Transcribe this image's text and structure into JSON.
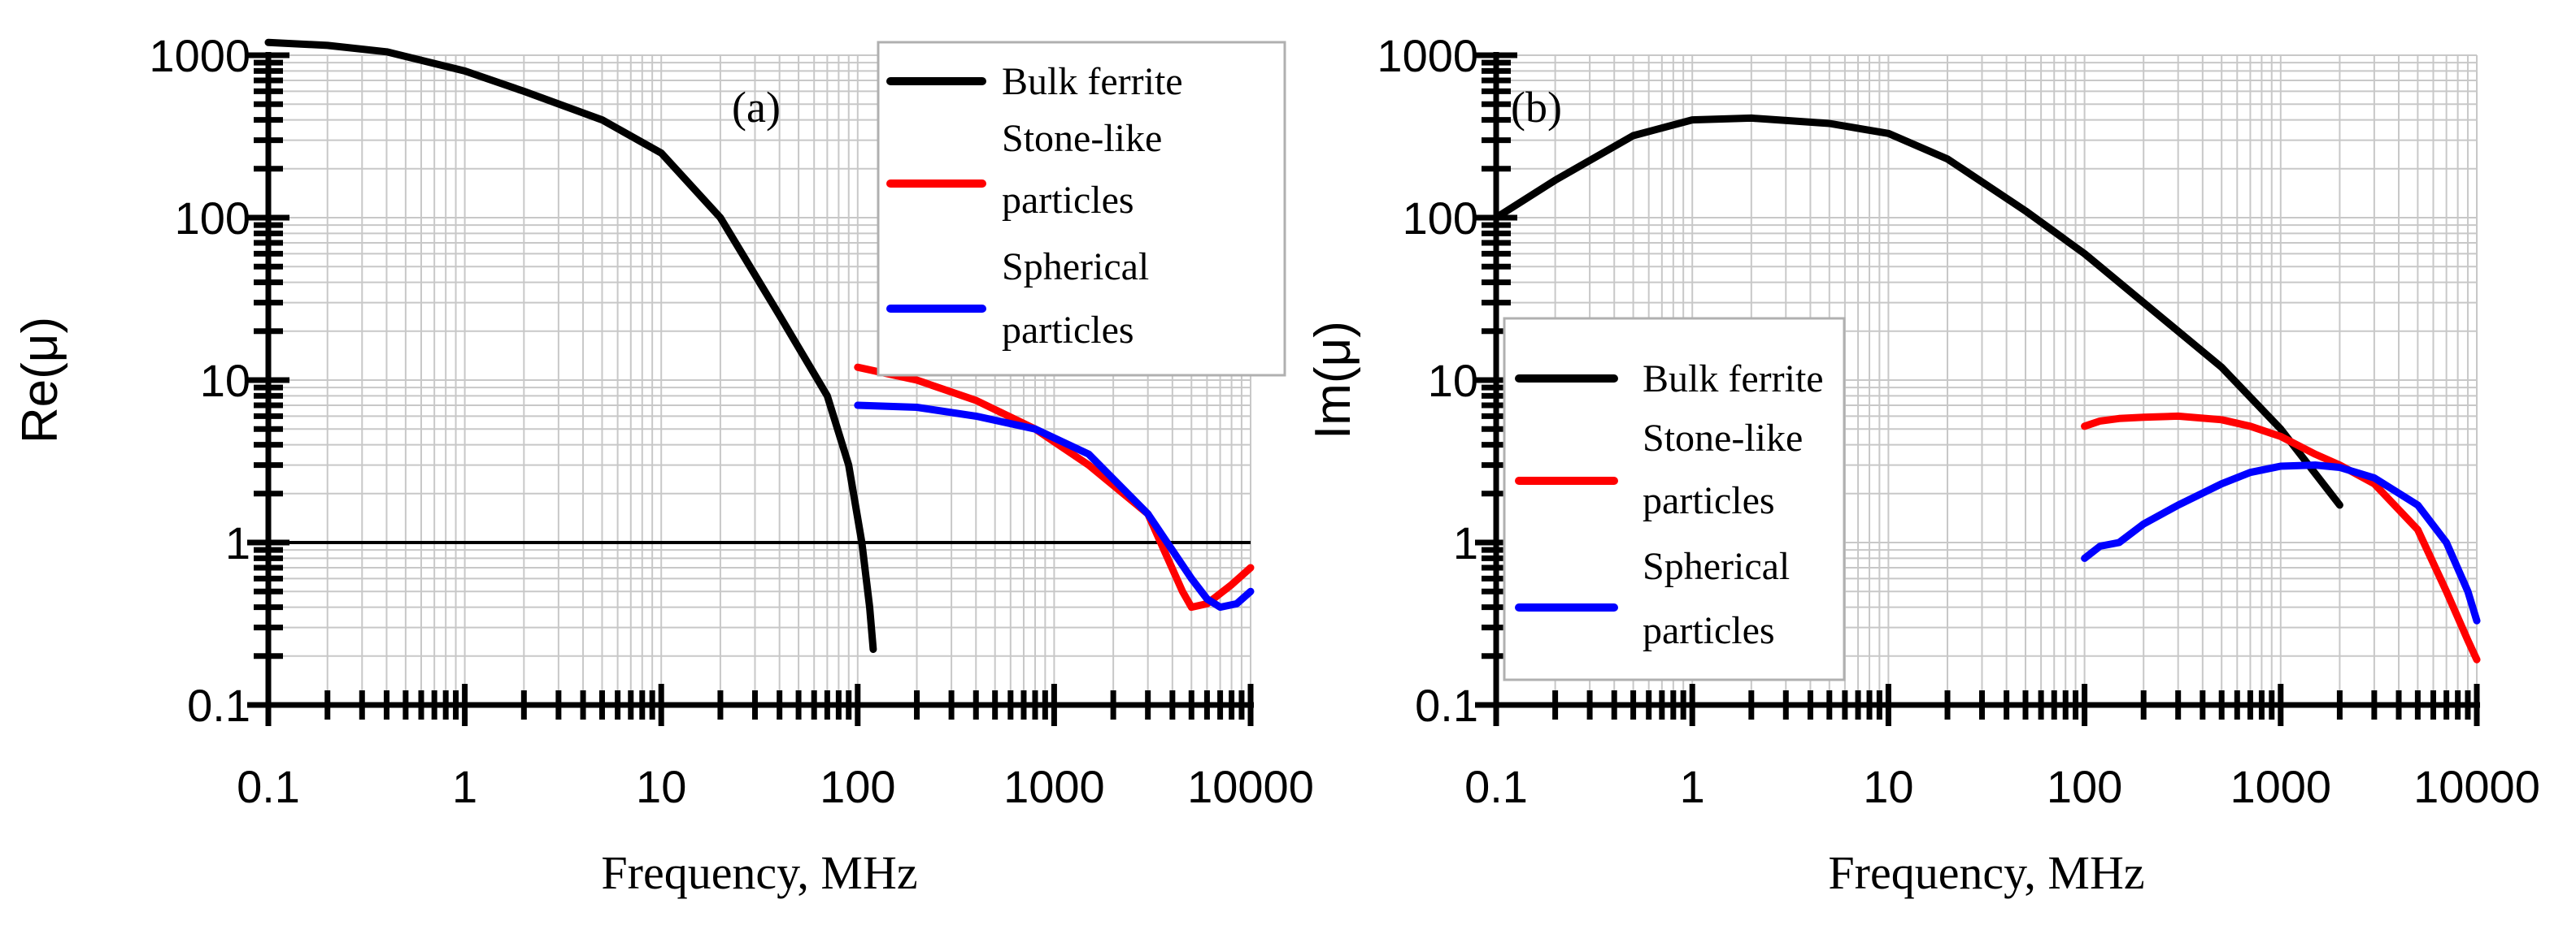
{
  "chart_data": [
    {
      "type": "line",
      "panel_label": "(a)",
      "ylabel": "Re(μ)",
      "xlabel": "Frequency, MHz",
      "xscale": "log",
      "yscale": "log",
      "xlim": [
        0.1,
        10000
      ],
      "ylim": [
        0.1,
        1000
      ],
      "x_tick_labels": [
        "0.1",
        "1",
        "10",
        "100",
        "1000",
        "10000"
      ],
      "y_tick_labels": [
        "0.1",
        "1",
        "10",
        "100",
        "1000"
      ],
      "reference_line_y": 1,
      "legend_position": "top-right",
      "series": [
        {
          "name": "Bulk ferrite",
          "color": "#000000",
          "x": [
            0.1,
            0.2,
            0.4,
            1,
            2,
            5,
            10,
            20,
            40,
            70,
            90,
            105,
            115,
            120
          ],
          "y": [
            1200,
            1150,
            1050,
            800,
            600,
            400,
            250,
            100,
            25,
            8,
            3,
            1,
            0.4,
            0.22
          ]
        },
        {
          "name": "Stone-like particles",
          "color": "#ff0000",
          "x": [
            100,
            200,
            400,
            800,
            1500,
            3000,
            4500,
            5000,
            6000,
            8000,
            10000
          ],
          "y": [
            12,
            10,
            7.5,
            5,
            3,
            1.5,
            0.5,
            0.4,
            0.42,
            0.55,
            0.7
          ]
        },
        {
          "name": "Spherical particles",
          "color": "#0000ff",
          "x": [
            100,
            200,
            400,
            800,
            1500,
            3000,
            5000,
            6000,
            7000,
            8500,
            10000
          ],
          "y": [
            7,
            6.8,
            6,
            5,
            3.5,
            1.5,
            0.6,
            0.45,
            0.4,
            0.42,
            0.5
          ]
        }
      ],
      "legend_entries": [
        {
          "lines": [
            "Bulk ferrite"
          ],
          "color": "#000000"
        },
        {
          "lines": [
            "Stone-like",
            "particles"
          ],
          "color": "#ff0000"
        },
        {
          "lines": [
            "Spherical",
            "particles"
          ],
          "color": "#0000ff"
        }
      ]
    },
    {
      "type": "line",
      "panel_label": "(b)",
      "ylabel": "Im(μ)",
      "xlabel": "Frequency, MHz",
      "xscale": "log",
      "yscale": "log",
      "xlim": [
        0.1,
        10000
      ],
      "ylim": [
        0.1,
        1000
      ],
      "x_tick_labels": [
        "0.1",
        "1",
        "10",
        "100",
        "1000",
        "10000"
      ],
      "y_tick_labels": [
        "0.1",
        "1",
        "10",
        "100",
        "1000"
      ],
      "legend_position": "lower-left",
      "series": [
        {
          "name": "Bulk ferrite",
          "color": "#000000",
          "x": [
            0.1,
            0.2,
            0.5,
            1,
            2,
            5,
            10,
            20,
            50,
            100,
            200,
            500,
            1000,
            2000
          ],
          "y": [
            100,
            170,
            320,
            400,
            410,
            380,
            330,
            230,
            110,
            60,
            30,
            12,
            5,
            1.7
          ]
        },
        {
          "name": "Stone-like particles",
          "color": "#ff0000",
          "x": [
            100,
            120,
            150,
            200,
            300,
            500,
            700,
            1000,
            1500,
            2000,
            3000,
            5000,
            7000,
            9000,
            10000
          ],
          "y": [
            5.2,
            5.6,
            5.8,
            5.9,
            6,
            5.7,
            5.2,
            4.5,
            3.5,
            3,
            2.3,
            1.2,
            0.5,
            0.25,
            0.19
          ]
        },
        {
          "name": "Spherical particles",
          "color": "#0000ff",
          "x": [
            100,
            120,
            150,
            200,
            300,
            500,
            700,
            1000,
            1500,
            2000,
            3000,
            5000,
            7000,
            9000,
            10000
          ],
          "y": [
            0.8,
            0.95,
            1,
            1.3,
            1.7,
            2.3,
            2.7,
            2.95,
            3,
            2.9,
            2.5,
            1.7,
            1,
            0.5,
            0.33
          ]
        }
      ],
      "legend_entries": [
        {
          "lines": [
            "Bulk ferrite"
          ],
          "color": "#000000"
        },
        {
          "lines": [
            "Stone-like",
            "particles"
          ],
          "color": "#ff0000"
        },
        {
          "lines": [
            "Spherical",
            "particles"
          ],
          "color": "#0000ff"
        }
      ]
    }
  ]
}
